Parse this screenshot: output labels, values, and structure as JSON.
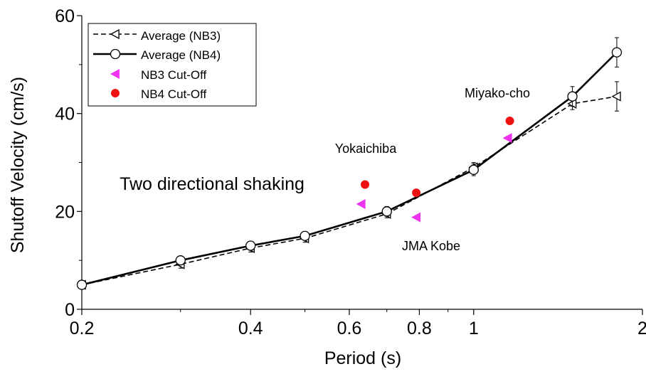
{
  "chart_data": {
    "type": "line",
    "title": "",
    "xlabel": "Period (s)",
    "ylabel": "Shutoff Velocity (cm/s)",
    "x_scale": "log",
    "xlim": [
      0.2,
      2
    ],
    "ylim": [
      0,
      60
    ],
    "x_ticks": [
      0.2,
      0.4,
      0.6,
      0.8,
      1,
      2
    ],
    "x_tick_labels": [
      "0.2",
      "0.4",
      "0.6",
      "0.8",
      "1",
      "2"
    ],
    "y_ticks": [
      0,
      20,
      40,
      60
    ],
    "y_tick_labels": [
      "0",
      "20",
      "40",
      "60"
    ],
    "grid": false,
    "legend_position": "top-left",
    "series": [
      {
        "name": "Average (NB3)",
        "style": "dashed",
        "marker": "triangle-left-open",
        "color": "#000000",
        "x": [
          0.2,
          0.3,
          0.4,
          0.5,
          0.7,
          1.0,
          1.5,
          1.8
        ],
        "y": [
          5.0,
          9.2,
          12.5,
          14.5,
          19.5,
          29.0,
          42.0,
          43.5
        ],
        "err": [
          0.6,
          0.8,
          0.8,
          0.8,
          0.8,
          1.0,
          1.2,
          3.0
        ]
      },
      {
        "name": "Average (NB4)",
        "style": "solid",
        "marker": "circle-open",
        "color": "#000000",
        "x": [
          0.2,
          0.3,
          0.4,
          0.5,
          0.7,
          1.0,
          1.5,
          1.8
        ],
        "y": [
          5.0,
          10.0,
          13.0,
          15.0,
          20.0,
          28.5,
          43.5,
          52.5
        ],
        "err": [
          0.6,
          0.8,
          0.8,
          0.8,
          1.0,
          1.2,
          2.0,
          3.0
        ]
      },
      {
        "name": "NB3 Cut-Off",
        "style": "none",
        "marker": "triangle-left-filled",
        "color": "#ee33ee",
        "x": [
          0.63,
          0.79,
          1.15
        ],
        "y": [
          21.5,
          18.8,
          35.0
        ]
      },
      {
        "name": "NB4 Cut-Off",
        "style": "none",
        "marker": "circle-filled",
        "color": "#ee1111",
        "x": [
          0.64,
          0.79,
          1.16
        ],
        "y": [
          25.5,
          23.8,
          38.5
        ]
      }
    ],
    "annotations": [
      {
        "text": "Yokaichiba",
        "size": "small"
      },
      {
        "text": "JMA Kobe",
        "size": "small"
      },
      {
        "text": "Miyako-cho",
        "size": "small"
      },
      {
        "text": "Two directional shaking",
        "size": "large"
      }
    ]
  }
}
